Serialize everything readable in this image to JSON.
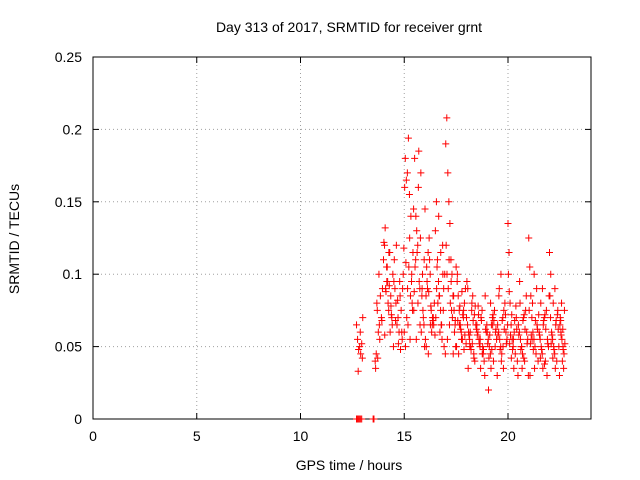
{
  "chart_data": {
    "type": "scatter",
    "title": "Day 313 of 2017, SRMTID for receiver grnt",
    "xlabel": "GPS time / hours",
    "ylabel": "SRMTID / TECUs",
    "xlim": [
      0,
      24
    ],
    "ylim": [
      0,
      0.25
    ],
    "xticks": [
      0,
      5,
      10,
      15,
      20
    ],
    "xtick_labels": [
      "0",
      "5",
      "10",
      "15",
      "20"
    ],
    "yticks": [
      0,
      0.05,
      0.1,
      0.15,
      0.2,
      0.25
    ],
    "ytick_labels": [
      "0",
      "0.05",
      "0.1",
      "0.15",
      "0.2",
      "0.25"
    ],
    "grid": true,
    "marker": "plus",
    "color": "#ff0000",
    "series": [
      {
        "name": "SRMTID",
        "x": [
          12.7,
          12.75,
          12.8,
          12.85,
          12.9,
          12.95,
          13.5,
          13.52,
          13.54,
          12.7,
          12.75,
          12.8,
          12.85,
          12.9,
          12.95,
          13.0,
          12.78,
          12.88,
          12.98,
          13.6,
          13.65,
          13.7,
          13.75,
          13.8,
          13.85,
          13.9,
          13.95,
          13.62,
          13.72,
          13.82,
          13.92,
          13.68,
          13.78,
          14.0,
          14.05,
          14.1,
          14.15,
          14.2,
          14.25,
          14.3,
          14.35,
          14.4,
          14.45,
          14.02,
          14.12,
          14.22,
          14.32,
          14.42,
          14.08,
          14.18,
          14.28,
          14.38,
          14.48,
          14.06,
          14.16,
          14.26,
          14.36,
          14.5,
          14.55,
          14.6,
          14.65,
          14.7,
          14.75,
          14.8,
          14.85,
          14.9,
          14.95,
          14.52,
          14.62,
          14.72,
          14.82,
          14.92,
          14.58,
          14.68,
          14.78,
          14.88,
          14.98,
          15.0,
          15.05,
          15.1,
          15.15,
          15.2,
          15.25,
          15.3,
          15.35,
          15.4,
          15.45,
          15.02,
          15.12,
          15.22,
          15.32,
          15.42,
          15.08,
          15.18,
          15.28,
          15.38,
          15.48,
          15.06,
          15.16,
          15.26,
          15.36,
          15.46,
          15.5,
          15.55,
          15.6,
          15.65,
          15.7,
          15.75,
          15.8,
          15.85,
          15.9,
          15.95,
          15.52,
          15.62,
          15.72,
          15.82,
          15.92,
          15.58,
          15.68,
          15.78,
          15.88,
          15.98,
          15.56,
          15.66,
          15.76,
          15.86,
          15.96,
          16.0,
          16.05,
          16.1,
          16.15,
          16.2,
          16.25,
          16.3,
          16.35,
          16.4,
          16.45,
          16.02,
          16.12,
          16.22,
          16.32,
          16.42,
          16.08,
          16.18,
          16.28,
          16.38,
          16.48,
          16.06,
          16.16,
          16.26,
          16.36,
          16.5,
          16.55,
          16.6,
          16.65,
          16.7,
          16.75,
          16.8,
          16.85,
          16.9,
          16.95,
          16.52,
          16.62,
          16.72,
          16.82,
          16.92,
          16.58,
          16.68,
          16.78,
          16.88,
          16.98,
          16.56,
          16.66,
          16.76,
          16.86,
          17.0,
          17.05,
          17.1,
          17.15,
          17.2,
          17.25,
          17.3,
          17.35,
          17.4,
          17.45,
          17.02,
          17.12,
          17.22,
          17.32,
          17.42,
          17.08,
          17.18,
          17.28,
          17.38,
          17.48,
          17.06,
          17.16,
          17.26,
          17.36,
          17.46,
          17.5,
          17.55,
          17.6,
          17.65,
          17.7,
          17.75,
          17.8,
          17.85,
          17.9,
          17.95,
          17.52,
          17.62,
          17.72,
          17.82,
          17.92,
          17.58,
          17.68,
          17.78,
          17.88,
          17.98,
          17.56,
          17.66,
          17.76,
          17.86,
          18.0,
          18.05,
          18.1,
          18.15,
          18.2,
          18.25,
          18.3,
          18.35,
          18.4,
          18.45,
          18.02,
          18.12,
          18.22,
          18.32,
          18.42,
          18.08,
          18.18,
          18.28,
          18.38,
          18.48,
          18.06,
          18.16,
          18.26,
          18.36,
          18.5,
          18.55,
          18.6,
          18.65,
          18.7,
          18.75,
          18.8,
          18.85,
          18.9,
          18.95,
          18.52,
          18.62,
          18.72,
          18.82,
          18.92,
          18.58,
          18.68,
          18.78,
          18.88,
          18.98,
          18.56,
          18.66,
          18.76,
          19.0,
          19.05,
          19.1,
          19.15,
          19.2,
          19.25,
          19.3,
          19.35,
          19.4,
          19.45,
          19.02,
          19.12,
          19.22,
          19.32,
          19.42,
          19.08,
          19.18,
          19.28,
          19.38,
          19.48,
          19.06,
          19.16,
          19.26,
          19.5,
          19.55,
          19.6,
          19.65,
          19.7,
          19.75,
          19.8,
          19.85,
          19.9,
          19.95,
          19.52,
          19.62,
          19.72,
          19.82,
          19.92,
          19.58,
          19.68,
          19.78,
          19.88,
          19.98,
          19.56,
          19.66,
          19.76,
          20.0,
          20.05,
          20.1,
          20.15,
          20.2,
          20.25,
          20.3,
          20.35,
          20.4,
          20.45,
          20.02,
          20.12,
          20.22,
          20.32,
          20.42,
          20.08,
          20.18,
          20.28,
          20.38,
          20.48,
          20.06,
          20.16,
          20.26,
          20.5,
          20.55,
          20.6,
          20.65,
          20.7,
          20.75,
          20.8,
          20.85,
          20.9,
          20.95,
          20.52,
          20.62,
          20.72,
          20.82,
          20.92,
          20.58,
          20.68,
          20.78,
          20.88,
          20.98,
          20.56,
          20.66,
          20.76,
          21.0,
          21.05,
          21.1,
          21.15,
          21.2,
          21.25,
          21.3,
          21.35,
          21.4,
          21.45,
          21.02,
          21.12,
          21.22,
          21.32,
          21.42,
          21.08,
          21.18,
          21.28,
          21.38,
          21.48,
          21.06,
          21.16,
          21.26,
          21.5,
          21.55,
          21.6,
          21.65,
          21.7,
          21.75,
          21.8,
          21.85,
          21.9,
          21.95,
          21.52,
          21.62,
          21.72,
          21.82,
          21.92,
          21.58,
          21.68,
          21.78,
          21.88,
          21.98,
          21.56,
          21.66,
          21.76,
          22.0,
          22.05,
          22.1,
          22.15,
          22.2,
          22.25,
          22.3,
          22.35,
          22.4,
          22.45,
          22.02,
          22.12,
          22.22,
          22.32,
          22.42,
          22.08,
          22.18,
          22.28,
          22.38,
          22.48,
          22.06,
          22.16,
          22.26,
          22.5,
          22.55,
          22.6,
          22.65,
          22.7,
          22.52,
          22.62,
          22.72,
          22.58,
          22.68,
          22.56,
          22.66,
          22.54,
          22.64,
          22.74
        ],
        "y": [
          0.0,
          0.0,
          0.0,
          0.0,
          0.0,
          0.0,
          0.0,
          0.0,
          0.0,
          0.065,
          0.055,
          0.048,
          0.05,
          0.045,
          0.052,
          0.07,
          0.033,
          0.06,
          0.042,
          0.04,
          0.045,
          0.075,
          0.06,
          0.065,
          0.085,
          0.07,
          0.09,
          0.035,
          0.042,
          0.055,
          0.068,
          0.08,
          0.1,
          0.11,
          0.12,
          0.09,
          0.105,
          0.095,
          0.075,
          0.115,
          0.085,
          0.07,
          0.1,
          0.122,
          0.088,
          0.08,
          0.06,
          0.065,
          0.132,
          0.105,
          0.092,
          0.072,
          0.05,
          0.058,
          0.095,
          0.115,
          0.078,
          0.095,
          0.09,
          0.08,
          0.065,
          0.07,
          0.06,
          0.085,
          0.075,
          0.055,
          0.1,
          0.11,
          0.12,
          0.052,
          0.048,
          0.09,
          0.068,
          0.082,
          0.095,
          0.06,
          0.118,
          0.06,
          0.18,
          0.165,
          0.17,
          0.194,
          0.155,
          0.085,
          0.095,
          0.075,
          0.145,
          0.16,
          0.07,
          0.105,
          0.14,
          0.115,
          0.108,
          0.065,
          0.055,
          0.08,
          0.088,
          0.05,
          0.09,
          0.125,
          0.1,
          0.075,
          0.18,
          0.11,
          0.13,
          0.12,
          0.185,
          0.09,
          0.17,
          0.085,
          0.075,
          0.065,
          0.105,
          0.115,
          0.095,
          0.06,
          0.07,
          0.055,
          0.16,
          0.125,
          0.1,
          0.05,
          0.14,
          0.08,
          0.065,
          0.09,
          0.11,
          0.145,
          0.085,
          0.095,
          0.115,
          0.125,
          0.1,
          0.075,
          0.065,
          0.07,
          0.08,
          0.055,
          0.09,
          0.11,
          0.06,
          0.065,
          0.105,
          0.088,
          0.078,
          0.068,
          0.058,
          0.05,
          0.045,
          0.065,
          0.07,
          0.13,
          0.15,
          0.11,
          0.095,
          0.085,
          0.075,
          0.065,
          0.12,
          0.09,
          0.1,
          0.07,
          0.08,
          0.06,
          0.055,
          0.05,
          0.105,
          0.085,
          0.065,
          0.075,
          0.045,
          0.09,
          0.14,
          0.115,
          0.1,
          0.19,
          0.208,
          0.17,
          0.15,
          0.135,
          0.11,
          0.1,
          0.085,
          0.075,
          0.065,
          0.12,
          0.09,
          0.08,
          0.07,
          0.06,
          0.055,
          0.065,
          0.075,
          0.085,
          0.05,
          0.1,
          0.11,
          0.095,
          0.045,
          0.068,
          0.105,
          0.095,
          0.085,
          0.075,
          0.065,
          0.06,
          0.055,
          0.07,
          0.08,
          0.09,
          0.05,
          0.045,
          0.062,
          0.072,
          0.058,
          0.068,
          0.078,
          0.088,
          0.048,
          0.052,
          0.1,
          0.065,
          0.055,
          0.075,
          0.07,
          0.065,
          0.06,
          0.055,
          0.05,
          0.075,
          0.085,
          0.045,
          0.04,
          0.065,
          0.095,
          0.058,
          0.048,
          0.068,
          0.078,
          0.035,
          0.06,
          0.052,
          0.072,
          0.062,
          0.09,
          0.05,
          0.08,
          0.042,
          0.065,
          0.06,
          0.055,
          0.05,
          0.07,
          0.075,
          0.045,
          0.04,
          0.085,
          0.06,
          0.058,
          0.052,
          0.068,
          0.048,
          0.062,
          0.072,
          0.035,
          0.05,
          0.03,
          0.065,
          0.078,
          0.055,
          0.045,
          0.06,
          0.055,
          0.05,
          0.045,
          0.065,
          0.07,
          0.04,
          0.075,
          0.06,
          0.055,
          0.052,
          0.058,
          0.048,
          0.068,
          0.062,
          0.042,
          0.035,
          0.072,
          0.05,
          0.03,
          0.02,
          0.08,
          0.065,
          0.065,
          0.06,
          0.055,
          0.05,
          0.045,
          0.07,
          0.075,
          0.08,
          0.06,
          0.055,
          0.058,
          0.048,
          0.068,
          0.062,
          0.052,
          0.09,
          0.04,
          0.035,
          0.072,
          0.065,
          0.085,
          0.1,
          0.05,
          0.135,
          0.115,
          0.08,
          0.065,
          0.055,
          0.05,
          0.06,
          0.045,
          0.07,
          0.04,
          0.1,
          0.058,
          0.048,
          0.068,
          0.062,
          0.052,
          0.072,
          0.035,
          0.078,
          0.03,
          0.088,
          0.042,
          0.055,
          0.065,
          0.06,
          0.055,
          0.05,
          0.045,
          0.07,
          0.04,
          0.075,
          0.06,
          0.055,
          0.058,
          0.048,
          0.068,
          0.062,
          0.052,
          0.08,
          0.035,
          0.072,
          0.085,
          0.03,
          0.095,
          0.05,
          0.042,
          0.125,
          0.105,
          0.085,
          0.07,
          0.06,
          0.055,
          0.05,
          0.045,
          0.065,
          0.04,
          0.075,
          0.058,
          0.048,
          0.068,
          0.062,
          0.052,
          0.08,
          0.035,
          0.09,
          0.072,
          0.03,
          0.055,
          0.1,
          0.06,
          0.055,
          0.05,
          0.045,
          0.065,
          0.07,
          0.04,
          0.075,
          0.055,
          0.05,
          0.058,
          0.048,
          0.068,
          0.062,
          0.052,
          0.08,
          0.035,
          0.072,
          0.03,
          0.085,
          0.042,
          0.09,
          0.038,
          0.115,
          0.07,
          0.06,
          0.055,
          0.05,
          0.045,
          0.065,
          0.04,
          0.075,
          0.05,
          0.085,
          0.058,
          0.048,
          0.068,
          0.062,
          0.052,
          0.08,
          0.035,
          0.072,
          0.03,
          0.1,
          0.042,
          0.09,
          0.065,
          0.06,
          0.055,
          0.05,
          0.045,
          0.07,
          0.04,
          0.075,
          0.08,
          0.035,
          0.058,
          0.048,
          0.068,
          0.062,
          0.052
        ]
      }
    ]
  }
}
